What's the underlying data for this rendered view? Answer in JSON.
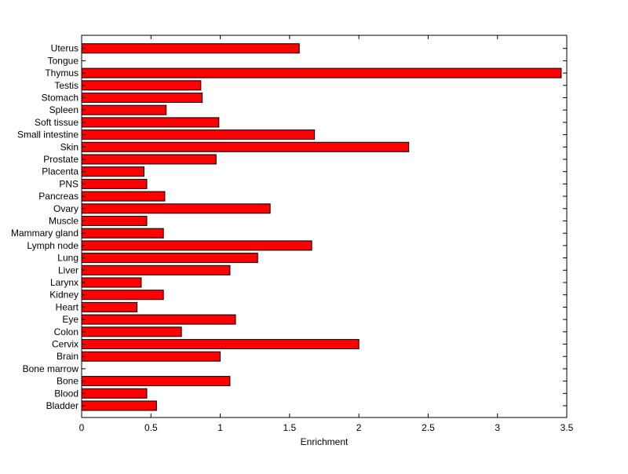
{
  "chart_data": {
    "type": "bar",
    "orientation": "horizontal",
    "title": "",
    "xlabel": "Enrichment",
    "ylabel": "",
    "xlim": [
      0,
      3.5
    ],
    "xticks": [
      0,
      0.5,
      1,
      1.5,
      2,
      2.5,
      3,
      3.5
    ],
    "xtick_labels": [
      "0",
      "0.5",
      "1",
      "1.5",
      "2",
      "2.5",
      "3",
      "3.5"
    ],
    "grid": false,
    "legend": "none",
    "bar_color": "#ff0000",
    "edge_color": "#000000",
    "categories": [
      "Bladder",
      "Blood",
      "Bone",
      "Bone marrow",
      "Brain",
      "Cervix",
      "Colon",
      "Eye",
      "Heart",
      "Kidney",
      "Larynx",
      "Liver",
      "Lung",
      "Lymph node",
      "Mammary gland",
      "Muscle",
      "Ovary",
      "Pancreas",
      "PNS",
      "Placenta",
      "Prostate",
      "Skin",
      "Small intestine",
      "Soft tissue",
      "Spleen",
      "Stomach",
      "Testis",
      "Thymus",
      "Tongue",
      "Uterus"
    ],
    "values": [
      0.54,
      0.47,
      1.07,
      0.0,
      1.0,
      2.0,
      0.72,
      1.11,
      0.4,
      0.59,
      0.43,
      1.07,
      1.27,
      1.66,
      0.59,
      0.47,
      1.36,
      0.6,
      0.47,
      0.45,
      0.97,
      2.36,
      1.68,
      0.99,
      0.61,
      0.87,
      0.86,
      3.46,
      0.0,
      1.57
    ]
  }
}
